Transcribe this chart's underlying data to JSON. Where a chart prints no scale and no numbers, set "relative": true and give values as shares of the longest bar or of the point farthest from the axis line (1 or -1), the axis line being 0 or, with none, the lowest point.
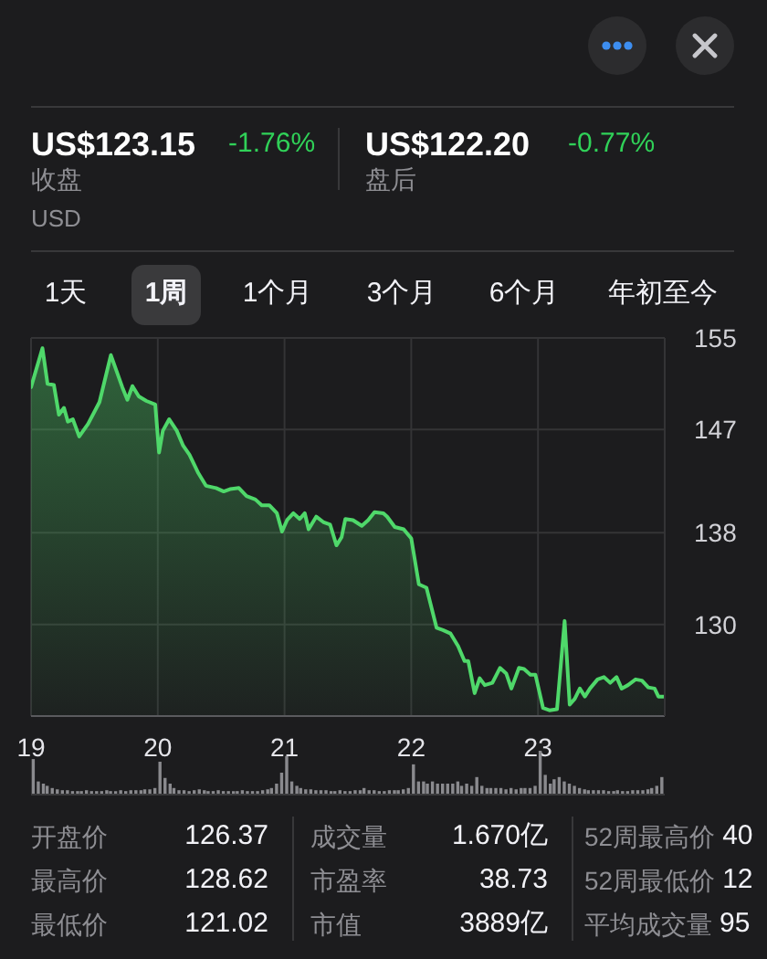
{
  "chart_data": [
    {
      "type": "other",
      "annotations": [
        "US$123.15",
        "-1.76%",
        "收盘",
        "US$122.20",
        "-0.77%",
        "盘后",
        "USD",
        "1天",
        "1周",
        "1个月",
        "3个月",
        "6个月",
        "年初至今"
      ]
    },
    {
      "type": "area",
      "x": [
        19,
        19.09,
        19.13,
        19.18,
        19.22,
        19.26,
        19.29,
        19.33,
        19.38,
        19.45,
        19.54,
        19.63,
        19.72,
        19.76,
        19.8,
        19.85,
        19.91,
        19.98,
        20.01,
        20.04,
        20.09,
        20.15,
        20.2,
        20.25,
        20.32,
        20.38,
        20.46,
        20.52,
        20.57,
        20.64,
        20.7,
        20.77,
        20.82,
        20.88,
        20.94,
        20.98,
        21.02,
        21.07,
        21.12,
        21.16,
        21.19,
        21.25,
        21.31,
        21.36,
        21.41,
        21.45,
        21.48,
        21.54,
        21.61,
        21.66,
        21.71,
        21.78,
        21.81,
        21.87,
        21.94,
        22,
        22.06,
        22.12,
        22.2,
        22.25,
        22.31,
        22.37,
        22.42,
        22.45,
        22.5,
        22.54,
        22.58,
        22.64,
        22.7,
        22.75,
        22.79,
        22.85,
        22.89,
        22.94,
        22.98,
        23.04,
        23.09,
        23.15,
        23.21,
        23.25,
        23.29,
        23.33,
        23.37,
        23.41,
        23.47,
        23.52,
        23.57,
        23.62,
        23.66,
        23.71,
        23.77,
        23.82,
        23.87,
        23.92,
        23.95,
        23.99
      ],
      "values": [
        150.7,
        154.1,
        151.0,
        150.9,
        148.3,
        148.9,
        147.7,
        147.9,
        146.4,
        147.5,
        149.4,
        153.5,
        150.7,
        149.6,
        150.8,
        149.9,
        149.5,
        149.2,
        145.0,
        146.9,
        147.9,
        146.9,
        145.6,
        144.8,
        143.2,
        142.1,
        141.9,
        141.6,
        141.8,
        141.9,
        141.2,
        140.9,
        140.4,
        140.4,
        139.7,
        138.1,
        139.1,
        139.7,
        139.2,
        139.7,
        138.3,
        139.4,
        138.9,
        138.7,
        136.9,
        137.6,
        139.2,
        139.1,
        138.6,
        139.1,
        139.8,
        139.7,
        139.4,
        138.5,
        138.3,
        137.5,
        133.5,
        133.2,
        129.7,
        129.5,
        129.2,
        128.1,
        126.8,
        126.8,
        124.0,
        125.3,
        124.7,
        124.9,
        126.2,
        125.7,
        124.4,
        126.2,
        126.1,
        125.6,
        125.6,
        122.7,
        122.5,
        122.6,
        130.3,
        123.0,
        123.5,
        124.4,
        123.7,
        124.4,
        125.2,
        125.4,
        124.9,
        125.4,
        124.4,
        124.7,
        125.2,
        125.1,
        124.5,
        124.4,
        123.7,
        123.7
      ],
      "color": "#4fd86a",
      "xlim": [
        19,
        24
      ],
      "xticks": [
        19,
        20,
        21,
        22,
        23
      ],
      "ylim": [
        122,
        155
      ],
      "yticks": [
        130,
        138,
        147,
        155
      ],
      "grid": true
    },
    {
      "type": "bar",
      "relative": true,
      "tick_labels": false,
      "color": "#8a8a8e",
      "xlim": [
        19,
        24
      ],
      "x": [
        19.02,
        19.06,
        19.1,
        19.13,
        19.17,
        19.21,
        19.25,
        19.29,
        19.33,
        19.37,
        19.4,
        19.44,
        19.48,
        19.52,
        19.56,
        19.6,
        19.63,
        19.67,
        19.71,
        19.75,
        19.79,
        19.83,
        19.87,
        19.9,
        19.94,
        19.98,
        20.02,
        20.06,
        20.1,
        20.13,
        20.17,
        20.21,
        20.25,
        20.29,
        20.33,
        20.37,
        20.4,
        20.44,
        20.48,
        20.52,
        20.56,
        20.6,
        20.63,
        20.67,
        20.71,
        20.75,
        20.79,
        20.83,
        20.87,
        20.9,
        20.94,
        20.98,
        21.02,
        21.06,
        21.1,
        21.13,
        21.17,
        21.21,
        21.25,
        21.29,
        21.33,
        21.37,
        21.4,
        21.44,
        21.48,
        21.52,
        21.56,
        21.6,
        21.63,
        21.67,
        21.71,
        21.75,
        21.79,
        21.83,
        21.87,
        21.9,
        21.94,
        21.98,
        22.02,
        22.06,
        22.1,
        22.13,
        22.17,
        22.21,
        22.25,
        22.29,
        22.33,
        22.37,
        22.4,
        22.44,
        22.48,
        22.52,
        22.56,
        22.6,
        22.63,
        22.67,
        22.71,
        22.75,
        22.79,
        22.83,
        22.87,
        22.9,
        22.94,
        22.98,
        23.02,
        23.06,
        23.1,
        23.13,
        23.17,
        23.21,
        23.25,
        23.29,
        23.33,
        23.37,
        23.4,
        23.44,
        23.48,
        23.52,
        23.56,
        23.6,
        23.63,
        23.67,
        23.71,
        23.75,
        23.79,
        23.83,
        23.87,
        23.9,
        23.94,
        23.98
      ],
      "values": [
        0.81,
        0.3,
        0.25,
        0.2,
        0.15,
        0.12,
        0.1,
        0.1,
        0.08,
        0.08,
        0.08,
        0.1,
        0.08,
        0.08,
        0.08,
        0.1,
        0.08,
        0.08,
        0.1,
        0.08,
        0.1,
        0.1,
        0.1,
        0.12,
        0.12,
        0.15,
        0.75,
        0.38,
        0.25,
        0.15,
        0.1,
        0.1,
        0.08,
        0.1,
        0.12,
        0.1,
        0.08,
        0.08,
        0.1,
        0.08,
        0.08,
        0.08,
        0.08,
        0.1,
        0.08,
        0.08,
        0.08,
        0.1,
        0.12,
        0.15,
        0.25,
        0.5,
        0.88,
        0.3,
        0.2,
        0.15,
        0.12,
        0.12,
        0.1,
        0.1,
        0.1,
        0.08,
        0.08,
        0.1,
        0.08,
        0.08,
        0.1,
        0.1,
        0.15,
        0.1,
        0.1,
        0.08,
        0.08,
        0.1,
        0.1,
        0.1,
        0.12,
        0.15,
        0.69,
        0.3,
        0.3,
        0.25,
        0.3,
        0.25,
        0.25,
        0.25,
        0.25,
        0.3,
        0.2,
        0.25,
        0.2,
        0.4,
        0.2,
        0.15,
        0.15,
        0.15,
        0.15,
        0.12,
        0.15,
        0.12,
        0.15,
        0.15,
        0.15,
        0.2,
        1,
        0.45,
        0.25,
        0.35,
        0.4,
        0.3,
        0.25,
        0.2,
        0.15,
        0.12,
        0.1,
        0.1,
        0.1,
        0.1,
        0.08,
        0.08,
        0.1,
        0.08,
        0.08,
        0.1,
        0.1,
        0.1,
        0.12,
        0.15,
        0.2,
        0.4
      ]
    },
    {
      "type": "other",
      "annotations": [
        "开盘价",
        "126.37",
        "最高价",
        "128.62",
        "最低价",
        "121.02",
        "成交量",
        "1.670亿",
        "市盈率",
        "38.73",
        "市值",
        "3889亿",
        "52周最高价",
        "40",
        "52周最低价",
        "12",
        "平均成交量",
        "95"
      ]
    }
  ]
}
